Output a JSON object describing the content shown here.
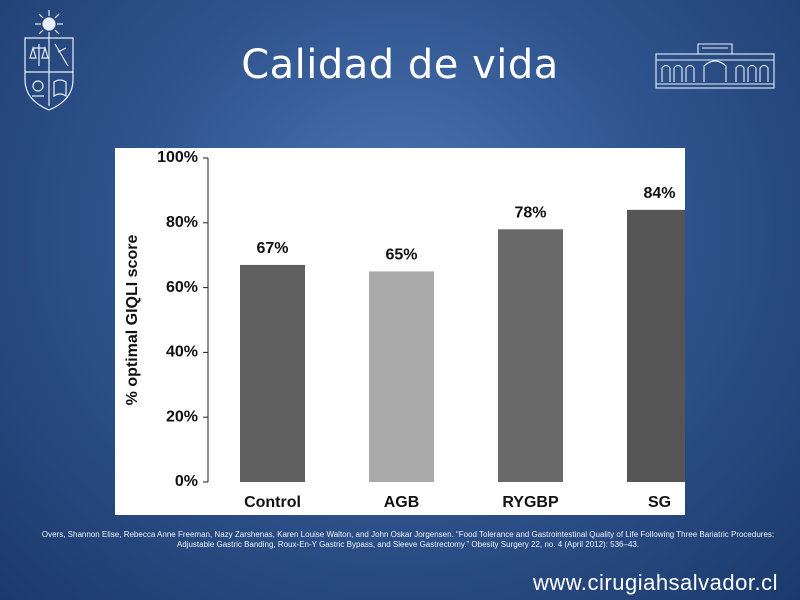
{
  "slide": {
    "title": "Calidad de vida",
    "citation": "Overs, Shannon Elise, Rebecca Anne Freeman, Nazy Zarshenas, Karen Louise Walton, and John Oskar Jorgensen. “Food Tolerance and Gastrointestinal Quality of Life Following Three Bariatric Procedures: Adjustable Gastric Banding, Roux-En-Y Gastric Bypass, and Sleeve Gastrectomy.” Obesity Surgery 22, no. 4 (April 2012): 536–43.",
    "website": "www.cirugiahsalvador.cl"
  },
  "chart_data": {
    "type": "bar",
    "title": "",
    "xlabel": "",
    "ylabel": "% optimal GIQLI score",
    "categories": [
      "Control",
      "AGB",
      "RYGBP",
      "SG"
    ],
    "values": [
      67,
      65,
      78,
      84
    ],
    "value_labels": [
      "67%",
      "65%",
      "78%",
      "84%"
    ],
    "yticks": [
      "0%",
      "20%",
      "40%",
      "60%",
      "80%",
      "100%"
    ],
    "ytick_values": [
      0,
      20,
      40,
      60,
      80,
      100
    ],
    "ylim": [
      0,
      100
    ],
    "bar_colors": [
      "#5f5f5f",
      "#aaaaaa",
      "#6a6a6a",
      "#555555"
    ],
    "grid": false
  }
}
